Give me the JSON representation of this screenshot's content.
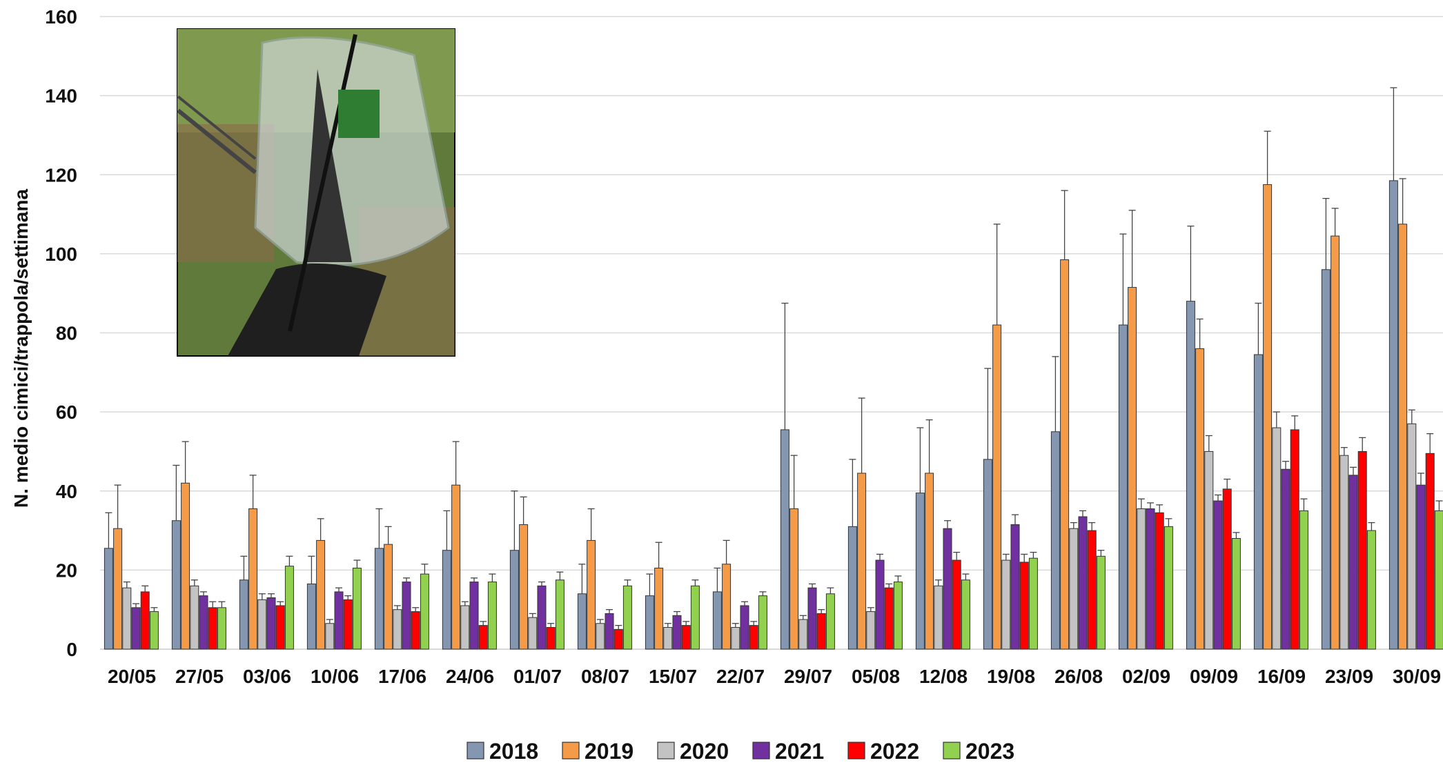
{
  "chart_data": {
    "type": "bar",
    "title": "",
    "xlabel": "",
    "ylabel": "N. medio cimici/trappola/settimana",
    "ylim": [
      0,
      160
    ],
    "yticks": [
      0,
      20,
      40,
      60,
      80,
      100,
      120,
      140,
      160
    ],
    "grid": true,
    "legend_position": "bottom-center",
    "categories": [
      "20/05",
      "27/05",
      "03/06",
      "10/06",
      "17/06",
      "24/06",
      "01/07",
      "08/07",
      "15/07",
      "22/07",
      "29/07",
      "05/08",
      "12/08",
      "19/08",
      "26/08",
      "02/09",
      "09/09",
      "16/09",
      "23/09",
      "30/09"
    ],
    "series": [
      {
        "name": "2018",
        "color": "#8597b0",
        "values": [
          25.5,
          32.5,
          17.5,
          16.5,
          25.5,
          25,
          25,
          14,
          13.5,
          14.5,
          55.5,
          31,
          39.5,
          48,
          55,
          82,
          88,
          74.5,
          96,
          118.5
        ],
        "errors": [
          9,
          14,
          6,
          7,
          10,
          10,
          15,
          7.5,
          5.5,
          6,
          32,
          17,
          16.5,
          23,
          19,
          23,
          19,
          13,
          18,
          23.5
        ]
      },
      {
        "name": "2019",
        "color": "#f59b47",
        "values": [
          30.5,
          42,
          35.5,
          27.5,
          26.5,
          41.5,
          31.5,
          27.5,
          20.5,
          21.5,
          35.5,
          44.5,
          44.5,
          82,
          98.5,
          91.5,
          76,
          117.5,
          104.5,
          107.5
        ],
        "errors": [
          11,
          10.5,
          8.5,
          5.5,
          4.5,
          11,
          7,
          8,
          6.5,
          6,
          13.5,
          19,
          13.5,
          25.5,
          17.5,
          19.5,
          7.5,
          13.5,
          7,
          11.5
        ]
      },
      {
        "name": "2020",
        "color": "#c3c3c3",
        "values": [
          15.5,
          16,
          12.5,
          6.5,
          10,
          11,
          8,
          6.5,
          5.5,
          5.5,
          7.5,
          9.5,
          16,
          22.5,
          30.5,
          35.5,
          50,
          56,
          49,
          57
        ],
        "errors": [
          1.5,
          1.5,
          1.5,
          1,
          1,
          1,
          1,
          1,
          1,
          1,
          1,
          1,
          1.5,
          1.5,
          1.5,
          2.5,
          4,
          4,
          2,
          3.5
        ]
      },
      {
        "name": "2021",
        "color": "#7030a0",
        "values": [
          10.5,
          13.5,
          13,
          14.5,
          17,
          17,
          16,
          9,
          8.5,
          11,
          15.5,
          22.5,
          30.5,
          31.5,
          33.5,
          35.5,
          37.5,
          45.5,
          44,
          41.5
        ],
        "errors": [
          1,
          1,
          1,
          1,
          1,
          1,
          1,
          1,
          1,
          1,
          1,
          1.5,
          2,
          2.5,
          1.5,
          1.5,
          1.5,
          2,
          2,
          3
        ]
      },
      {
        "name": "2022",
        "color": "#ff0000",
        "values": [
          14.5,
          10.5,
          11,
          12.5,
          9.5,
          6,
          5.5,
          5,
          6,
          6,
          9,
          15.5,
          22.5,
          22,
          30,
          34.5,
          40.5,
          55.5,
          50,
          49.5
        ],
        "errors": [
          1.5,
          1.5,
          1,
          1,
          1,
          1,
          1,
          1,
          1,
          1,
          1,
          1,
          2,
          2,
          2,
          2,
          2.5,
          3.5,
          3.5,
          5
        ]
      },
      {
        "name": "2023",
        "color": "#92d050",
        "values": [
          9.5,
          10.5,
          21,
          20.5,
          19,
          17,
          17.5,
          16,
          16,
          13.5,
          14,
          17,
          17.5,
          23,
          23.5,
          31,
          28,
          35,
          30,
          35
        ],
        "errors": [
          1,
          1.5,
          2.5,
          2,
          2.5,
          2,
          2,
          1.5,
          1.5,
          1,
          1.5,
          1.5,
          1.5,
          1.5,
          1.5,
          2,
          1.5,
          3,
          2,
          2.5
        ]
      }
    ]
  }
}
